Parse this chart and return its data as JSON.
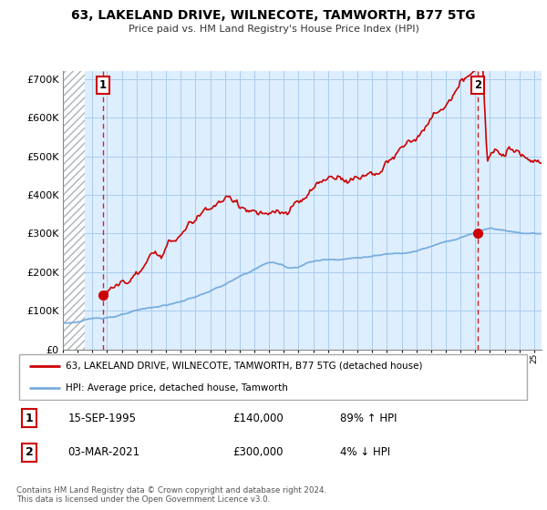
{
  "title": "63, LAKELAND DRIVE, WILNECOTE, TAMWORTH, B77 5TG",
  "subtitle": "Price paid vs. HM Land Registry's House Price Index (HPI)",
  "ylabel_ticks": [
    "£0",
    "£100K",
    "£200K",
    "£300K",
    "£400K",
    "£500K",
    "£600K",
    "£700K"
  ],
  "ytick_values": [
    0,
    100000,
    200000,
    300000,
    400000,
    500000,
    600000,
    700000
  ],
  "ylim": [
    0,
    720000
  ],
  "xlim_start": 1993.0,
  "xlim_end": 2025.5,
  "sale1_date": 1995.71,
  "sale1_price": 140000,
  "sale2_date": 2021.17,
  "sale2_price": 300000,
  "property_line_color": "#cc0000",
  "hpi_line_color": "#7aaddd",
  "chart_bg_color": "#ddeeff",
  "hatch_color": "#bbbbbb",
  "grid_color": "#aaccee",
  "legend_label1": "63, LAKELAND DRIVE, WILNECOTE, TAMWORTH, B77 5TG (detached house)",
  "legend_label2": "HPI: Average price, detached house, Tamworth",
  "table_row1": [
    "1",
    "15-SEP-1995",
    "£140,000",
    "89% ↑ HPI"
  ],
  "table_row2": [
    "2",
    "03-MAR-2021",
    "£300,000",
    "4% ↓ HPI"
  ],
  "footnote": "Contains HM Land Registry data © Crown copyright and database right 2024.\nThis data is licensed under the Open Government Licence v3.0."
}
